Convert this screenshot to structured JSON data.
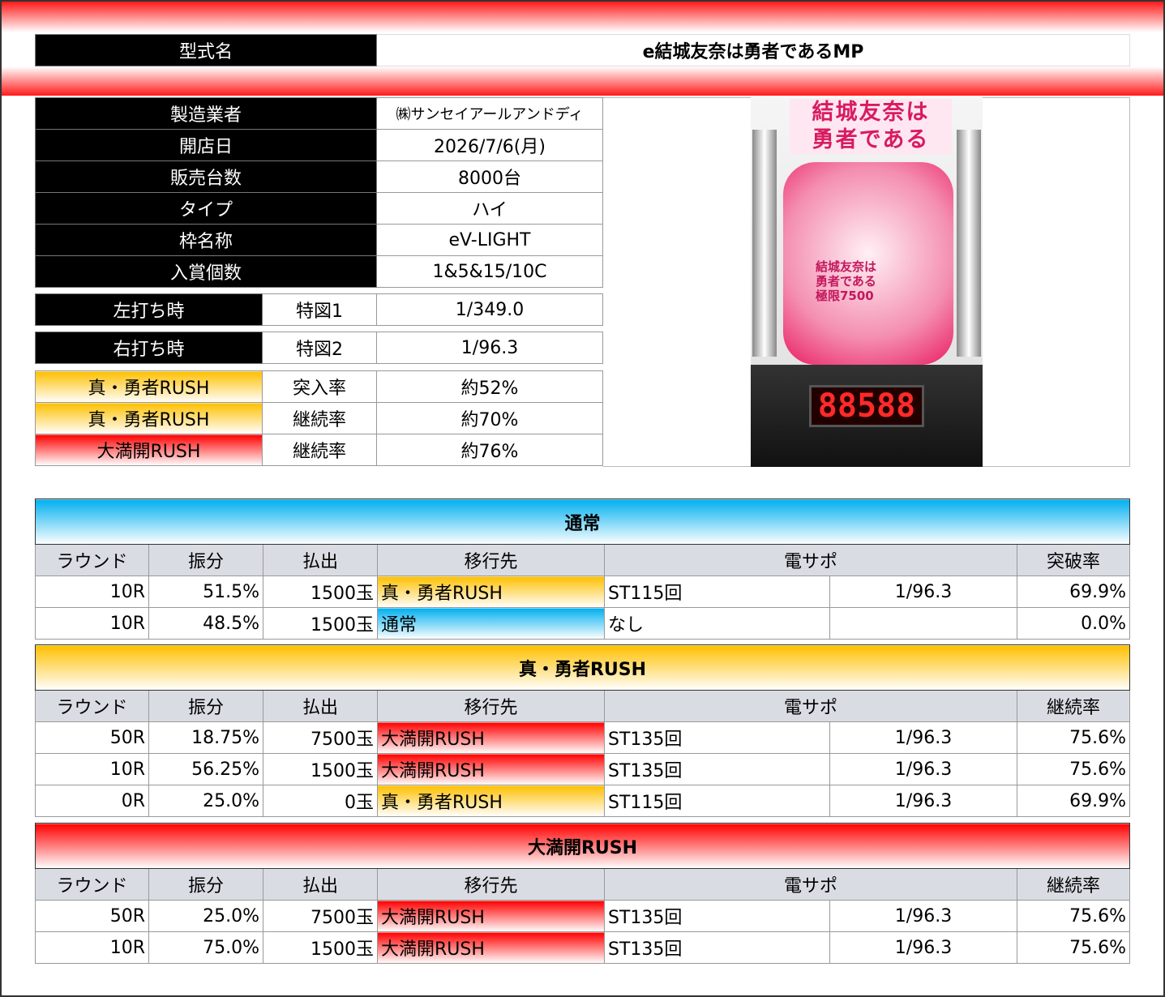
{
  "model": {
    "label": "型式名",
    "value": "e結城友奈は勇者であるMP"
  },
  "info": [
    {
      "label": "製造業者",
      "value": "㈱サンセイアールアンドディ"
    },
    {
      "label": "開店日",
      "value": "2026/7/6(月)"
    },
    {
      "label": "販売台数",
      "value": "8000台"
    },
    {
      "label": "タイプ",
      "value": "ハイ"
    },
    {
      "label": "枠名称",
      "value": "eV-LIGHT"
    },
    {
      "label": "入賞個数",
      "value": "1&5&15/10C"
    }
  ],
  "hits": [
    {
      "label": "左打ち時",
      "sub": "特図1",
      "value": "1/349.0"
    },
    {
      "label": "右打ち時",
      "sub": "特図2",
      "value": "1/96.3"
    }
  ],
  "rush": [
    {
      "label": "真・勇者RUSH",
      "sub": "突入率",
      "value": "約52%",
      "color": "gold"
    },
    {
      "label": "真・勇者RUSH",
      "sub": "継続率",
      "value": "約70%",
      "color": "gold"
    },
    {
      "label": "大満開RUSH",
      "sub": "継続率",
      "value": "約76%",
      "color": "red"
    }
  ],
  "machine_image": {
    "logo_text": "結城友奈は勇者である",
    "sub_logo": "結城友奈は勇者である 極限7500",
    "display": "88588"
  },
  "colors": {
    "gold": "#ffc000",
    "red": "#ff0000",
    "blue": "#00b0f0"
  },
  "sections": [
    {
      "title": "通常",
      "color": "blue",
      "headers": [
        "ラウンド",
        "振分",
        "払出",
        "移行先",
        "電サポ",
        "突破率"
      ],
      "rows": [
        [
          "10R",
          "51.5%",
          "1500玉",
          "真・勇者RUSH",
          "ST115回",
          "1/96.3",
          "69.9%",
          "gold"
        ],
        [
          "10R",
          "48.5%",
          "1500玉",
          "通常",
          "なし",
          "",
          "0.0%",
          "blue"
        ]
      ]
    },
    {
      "title": "真・勇者RUSH",
      "color": "gold",
      "headers": [
        "ラウンド",
        "振分",
        "払出",
        "移行先",
        "電サポ",
        "継続率"
      ],
      "rows": [
        [
          "50R",
          "18.75%",
          "7500玉",
          "大満開RUSH",
          "ST135回",
          "1/96.3",
          "75.6%",
          "red"
        ],
        [
          "10R",
          "56.25%",
          "1500玉",
          "大満開RUSH",
          "ST135回",
          "1/96.3",
          "75.6%",
          "red"
        ],
        [
          "0R",
          "25.0%",
          "0玉",
          "真・勇者RUSH",
          "ST115回",
          "1/96.3",
          "69.9%",
          "gold"
        ]
      ]
    },
    {
      "title": "大満開RUSH",
      "color": "red",
      "headers": [
        "ラウンド",
        "振分",
        "払出",
        "移行先",
        "電サポ",
        "継続率"
      ],
      "rows": [
        [
          "50R",
          "25.0%",
          "7500玉",
          "大満開RUSH",
          "ST135回",
          "1/96.3",
          "75.6%",
          "red"
        ],
        [
          "10R",
          "75.0%",
          "1500玉",
          "大満開RUSH",
          "ST135回",
          "1/96.3",
          "75.6%",
          "red"
        ]
      ]
    }
  ]
}
